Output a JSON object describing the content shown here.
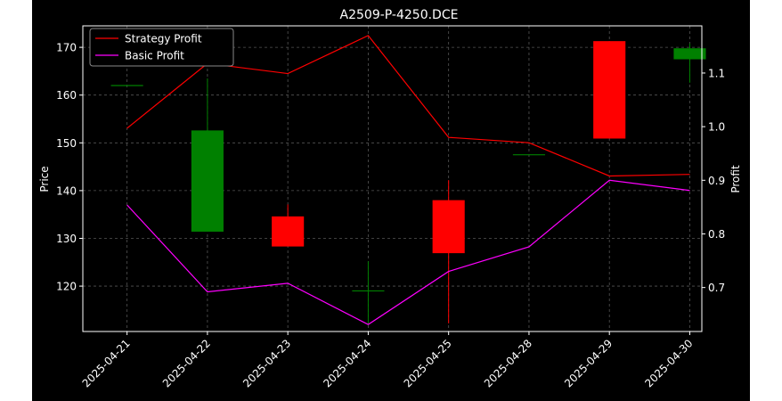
{
  "chart_data": {
    "type": "candlestick",
    "title": "A2509-P-4250.DCE",
    "xlabel": "",
    "ylabel": "Price",
    "y2label": "Profit",
    "categories": [
      "2025-04-21",
      "2025-04-22",
      "2025-04-23",
      "2025-04-24",
      "2025-04-25",
      "2025-04-28",
      "2025-04-29",
      "2025-04-30"
    ],
    "ylim": [
      110.5,
      174.5
    ],
    "y2lim": [
      0.618,
      1.188
    ],
    "yticks": [
      120,
      130,
      140,
      150,
      160,
      170
    ],
    "y2ticks": [
      0.7,
      0.8,
      0.9,
      1.0,
      1.1
    ],
    "grid": true,
    "legend_position": "top-left",
    "candles": [
      {
        "open": 162.0,
        "high": 162.0,
        "low": 162.0,
        "close": 162.0
      },
      {
        "open": 131.4,
        "high": 163.5,
        "low": 131.4,
        "close": 152.6
      },
      {
        "open": 134.6,
        "high": 137.1,
        "low": 128.3,
        "close": 128.3
      },
      {
        "open": 119.0,
        "high": 125.2,
        "low": 111.9,
        "close": 119.0
      },
      {
        "open": 138.0,
        "high": 142.2,
        "low": 112.2,
        "close": 126.9
      },
      {
        "open": 147.5,
        "high": 147.5,
        "low": 147.5,
        "close": 147.5
      },
      {
        "open": 171.3,
        "high": 171.3,
        "low": 150.9,
        "close": 150.9
      },
      {
        "open": 167.5,
        "high": 170.8,
        "low": 162.6,
        "close": 169.8
      }
    ],
    "series": [
      {
        "name": "Strategy Profit",
        "color": "#ff0000",
        "axis": "right",
        "values": [
          0.997,
          1.118,
          1.099,
          1.17,
          0.98,
          0.97,
          0.908,
          0.911
        ]
      },
      {
        "name": "Basic Profit",
        "color": "#ff00ff",
        "axis": "right",
        "values": [
          0.854,
          0.692,
          0.708,
          0.631,
          0.73,
          0.776,
          0.9,
          0.881
        ]
      }
    ],
    "colors": {
      "up": "#008000",
      "down": "#ff0000",
      "background": "#000000",
      "grid": "#555555",
      "axes": "#ffffff"
    }
  }
}
